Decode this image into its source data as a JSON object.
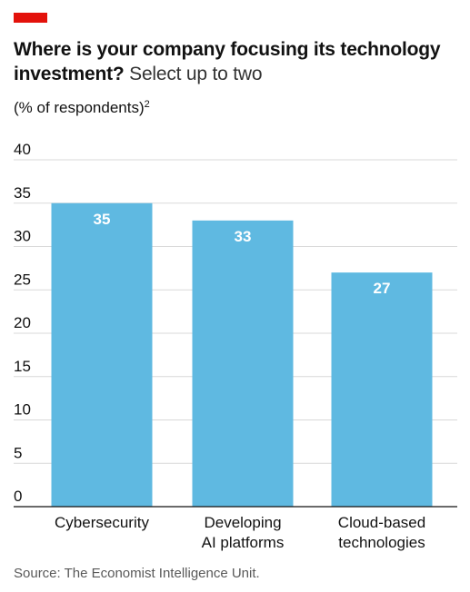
{
  "header": {
    "accent_color": "#e3120b"
  },
  "title": {
    "main": "Where is your company focusing its technology investment?",
    "sub": " Select up to two"
  },
  "unit": {
    "label": "(% of respondents)",
    "footnote": "2"
  },
  "source": "Source: The Economist Intelligence Unit.",
  "colors": {
    "bar": "#5fb9e1",
    "gridline": "#d9d9d9",
    "baseline": "#121212",
    "bar_label": "#ffffff"
  },
  "chart_data": {
    "type": "bar",
    "title": "Where is your company focusing its technology investment? Select up to two",
    "ylabel": "(% of respondents)",
    "xlabel": "",
    "categories": [
      [
        "Cybersecurity"
      ],
      [
        "Developing",
        "AI platforms"
      ],
      [
        "Cloud-based",
        "technologies"
      ]
    ],
    "values": [
      35,
      33,
      27
    ],
    "data_labels": [
      "35",
      "33",
      "27"
    ],
    "ylim": [
      0,
      40
    ],
    "yticks": [
      0,
      5,
      10,
      15,
      20,
      25,
      30,
      35,
      40
    ],
    "grid": true,
    "legend": "none"
  }
}
